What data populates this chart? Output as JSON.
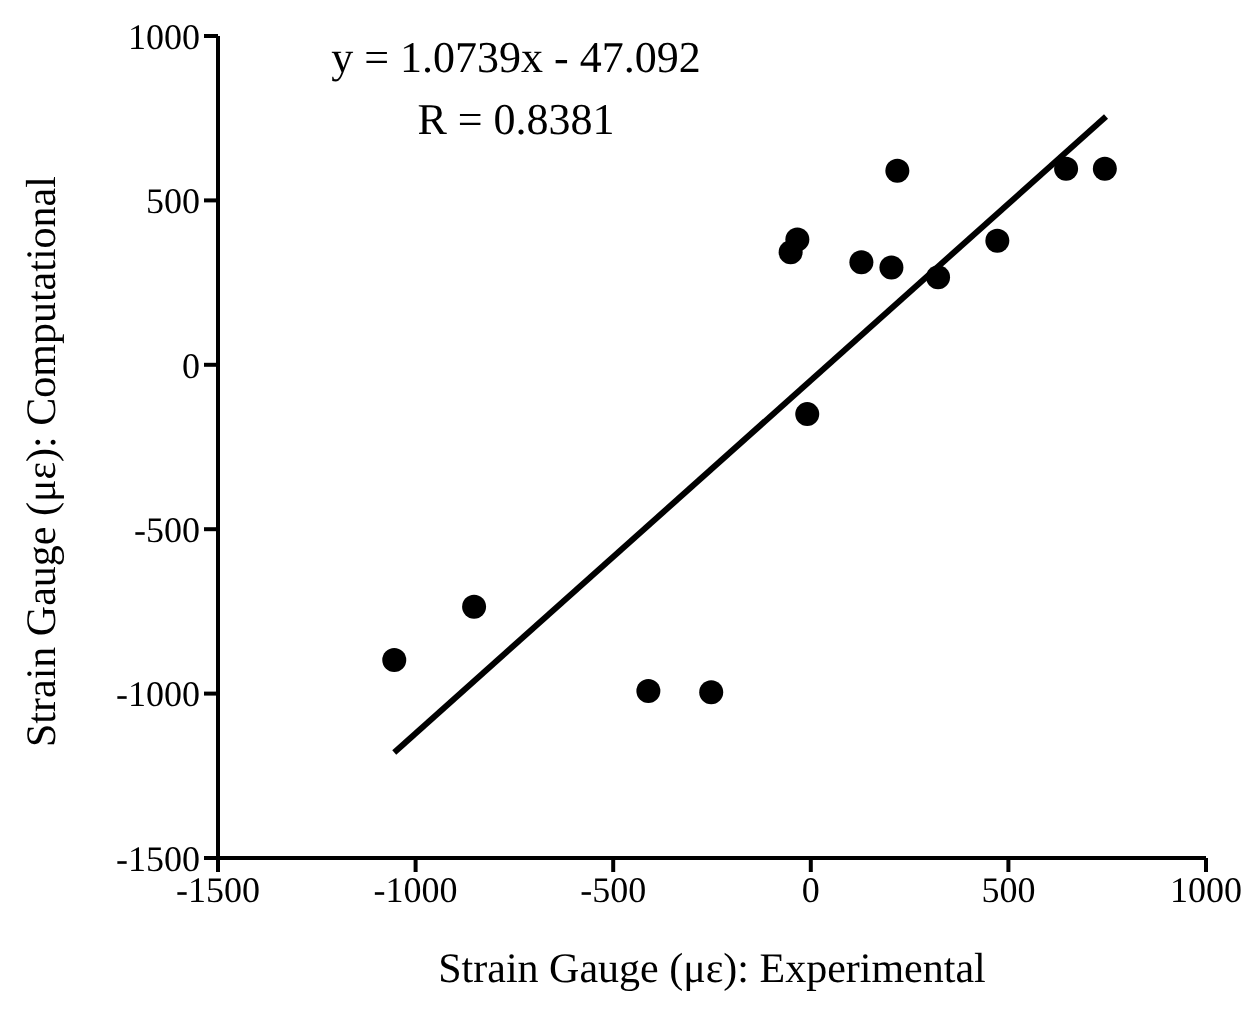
{
  "chart_data": {
    "type": "scatter",
    "xlabel": "Strain Gauge (με): Experimental",
    "ylabel": "Strain Gauge (με): Computational",
    "annotations": [
      "y = 1.0739x - 47.092",
      "R = 0.8381"
    ],
    "xlim": [
      -1500,
      1000
    ],
    "xticks": [
      -1500,
      -1000,
      -500,
      0,
      500,
      1000
    ],
    "ylim": [
      -1500,
      1000
    ],
    "yticks": [
      -1500,
      -1000,
      -500,
      0,
      500,
      1000
    ],
    "grid": false,
    "legend": false,
    "marker": "circle",
    "series": [
      {
        "color": "#000000",
        "x": [
          -1054,
          -852,
          -411,
          -252,
          -9,
          -51,
          -34,
          128,
          204,
          219,
          322,
          472,
          646,
          744
        ],
        "values": [
          -898,
          -736,
          -992,
          -996,
          -150,
          342,
          381,
          312,
          296,
          590,
          266,
          377,
          596,
          596
        ]
      },
      {
        "type": "line",
        "color": "#000000",
        "marker": "none",
        "x": [
          -1054,
          747
        ],
        "values": [
          -1179,
          755
        ]
      }
    ]
  }
}
